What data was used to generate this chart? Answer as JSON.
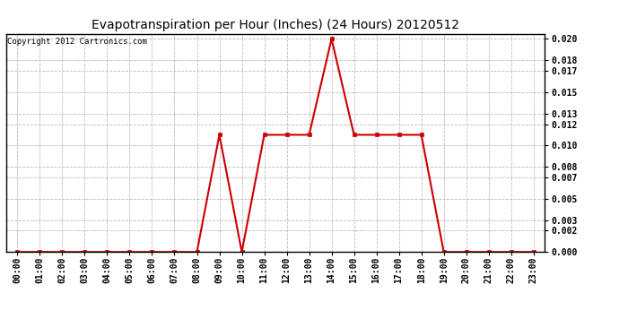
{
  "title": "Evapotranspiration per Hour (Inches) (24 Hours) 20120512",
  "copyright": "Copyright 2012 Cartronics.com",
  "hours": [
    "00:00",
    "01:00",
    "02:00",
    "03:00",
    "04:00",
    "05:00",
    "06:00",
    "07:00",
    "08:00",
    "09:00",
    "10:00",
    "11:00",
    "12:00",
    "13:00",
    "14:00",
    "15:00",
    "16:00",
    "17:00",
    "18:00",
    "19:00",
    "20:00",
    "21:00",
    "22:00",
    "23:00"
  ],
  "values": [
    0.0,
    0.0,
    0.0,
    0.0,
    0.0,
    0.0,
    0.0,
    0.0,
    0.0,
    0.011,
    0.0,
    0.011,
    0.011,
    0.011,
    0.02,
    0.011,
    0.011,
    0.011,
    0.011,
    0.0,
    0.0,
    0.0,
    0.0,
    0.0
  ],
  "line_color": "#cc0000",
  "marker": "s",
  "marker_size": 3,
  "line_width": 1.5,
  "ylim": [
    0.0,
    0.0205
  ],
  "yticks": [
    0.0,
    0.002,
    0.003,
    0.005,
    0.007,
    0.008,
    0.01,
    0.012,
    0.013,
    0.015,
    0.017,
    0.018,
    0.02
  ],
  "grid_color": "#bbbbbb",
  "grid_style": "--",
  "bg_color": "#ffffff",
  "plot_bg_color": "#ffffff",
  "title_fontsize": 10,
  "copyright_fontsize": 6.5,
  "tick_fontsize": 7,
  "border_color": "#000000"
}
